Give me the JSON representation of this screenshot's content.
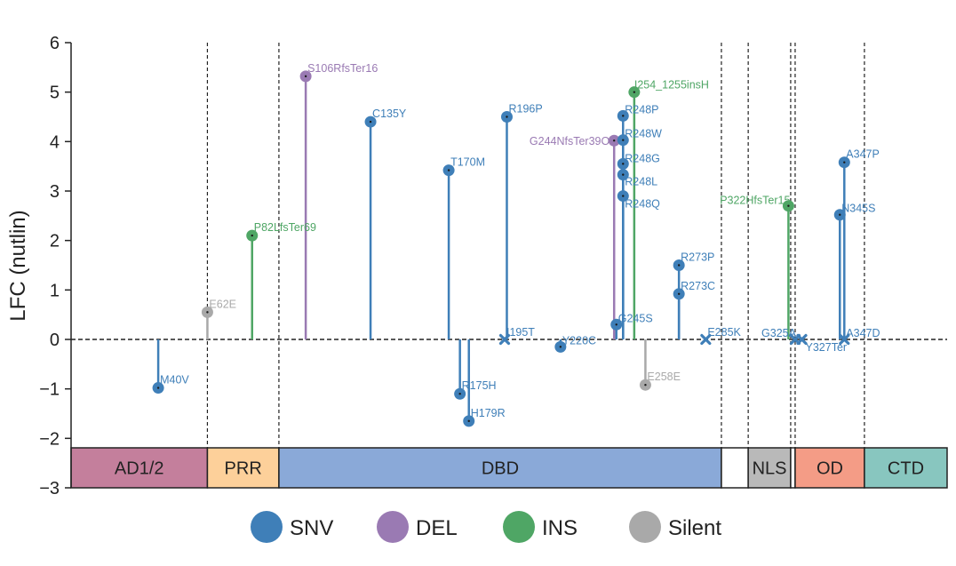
{
  "chart_data": {
    "type": "scatter",
    "subtype": "lollipop",
    "ylabel": "LFC (nutlin)",
    "ylim": [
      -3,
      6
    ],
    "yticks": [
      6,
      5,
      4,
      3,
      2,
      1,
      0,
      -1,
      -2,
      -3
    ],
    "ytick_labels": [
      "6",
      "5",
      "4",
      "3",
      "2",
      "1",
      "0",
      "−1",
      "−2",
      "−3"
    ],
    "xlim": [
      1,
      393
    ],
    "zero_line": true,
    "colors": {
      "SNV": "#3f7fb8",
      "DEL": "#9a7ab3",
      "INS": "#4fa665",
      "Silent": "#a9a9a9"
    },
    "domain_boundaries": [
      62,
      94,
      292,
      304,
      323,
      325,
      356
    ],
    "domains": [
      {
        "label": "AD1/2",
        "start": 1,
        "end": 62,
        "color": "#c47f9c"
      },
      {
        "label": "PRR",
        "start": 62,
        "end": 94,
        "color": "#fdd09a"
      },
      {
        "label": "DBD",
        "start": 94,
        "end": 292,
        "color": "#8aa9d8"
      },
      {
        "label": "",
        "start": 292,
        "end": 304,
        "color": "#ffffff"
      },
      {
        "label": "NLS",
        "start": 304,
        "end": 323,
        "color": "#b9b9b9"
      },
      {
        "label": "",
        "start": 323,
        "end": 325,
        "color": "#ffffff"
      },
      {
        "label": "OD",
        "start": 325,
        "end": 356,
        "color": "#f49c86"
      },
      {
        "label": "CTD",
        "start": 356,
        "end": 393,
        "color": "#88c6bf"
      }
    ],
    "points": [
      {
        "label": "M40V",
        "pos": 40,
        "lfc": -0.98,
        "type": "SNV"
      },
      {
        "label": "E62E",
        "pos": 62,
        "lfc": 0.55,
        "type": "Silent"
      },
      {
        "label": "P82LfsTer69",
        "pos": 82,
        "lfc": 2.1,
        "type": "INS"
      },
      {
        "label": "S106RfsTer16",
        "pos": 106,
        "lfc": 5.32,
        "type": "DEL"
      },
      {
        "label": "C135Y",
        "pos": 135,
        "lfc": 4.4,
        "type": "SNV"
      },
      {
        "label": "T170M",
        "pos": 170,
        "lfc": 3.42,
        "type": "SNV"
      },
      {
        "label": "R175H",
        "pos": 175,
        "lfc": -1.1,
        "type": "SNV"
      },
      {
        "label": "H179R",
        "pos": 179,
        "lfc": -1.65,
        "type": "SNV"
      },
      {
        "label": "I195T",
        "pos": 195,
        "lfc": 0.0,
        "type": "SNV"
      },
      {
        "label": "R196P",
        "pos": 196,
        "lfc": 4.5,
        "type": "SNV"
      },
      {
        "label": "Y220C",
        "pos": 220,
        "lfc": -0.15,
        "type": "SNV"
      },
      {
        "label": "G244NfsTer39O",
        "pos": 244,
        "lfc": 4.02,
        "type": "DEL"
      },
      {
        "label": "G245S",
        "pos": 245,
        "lfc": 0.3,
        "type": "SNV"
      },
      {
        "label": "R248P",
        "pos": 248,
        "lfc": 4.52,
        "type": "SNV"
      },
      {
        "label": "R248W",
        "pos": 248,
        "lfc": 4.03,
        "type": "SNV"
      },
      {
        "label": "R248G",
        "pos": 248,
        "lfc": 3.55,
        "type": "SNV"
      },
      {
        "label": "R248L",
        "pos": 248,
        "lfc": 3.33,
        "type": "SNV"
      },
      {
        "label": "R248Q",
        "pos": 248,
        "lfc": 2.9,
        "type": "SNV"
      },
      {
        "label": "I254_1255insH",
        "pos": 253,
        "lfc": 5.0,
        "type": "INS"
      },
      {
        "label": "E258E",
        "pos": 258,
        "lfc": -0.92,
        "type": "Silent"
      },
      {
        "label": "R273P",
        "pos": 273,
        "lfc": 1.5,
        "type": "SNV"
      },
      {
        "label": "R273C",
        "pos": 273,
        "lfc": 0.92,
        "type": "SNV"
      },
      {
        "label": "E285K",
        "pos": 285,
        "lfc": 0.0,
        "type": "SNV"
      },
      {
        "label": "P322HfsTer15",
        "pos": 322,
        "lfc": 2.7,
        "type": "INS"
      },
      {
        "label": "G325A",
        "pos": 325,
        "lfc": 0.0,
        "type": "SNV"
      },
      {
        "label": "Y327Ter",
        "pos": 328,
        "lfc": 0.0,
        "type": "SNV"
      },
      {
        "label": "N345S",
        "pos": 345,
        "lfc": 2.52,
        "type": "SNV"
      },
      {
        "label": "A347P",
        "pos": 347,
        "lfc": 3.58,
        "type": "SNV"
      },
      {
        "label": "A347D",
        "pos": 347,
        "lfc": 0.0,
        "type": "SNV"
      }
    ],
    "legend": [
      {
        "label": "SNV",
        "type": "SNV"
      },
      {
        "label": "DEL",
        "type": "DEL"
      },
      {
        "label": "INS",
        "type": "INS"
      },
      {
        "label": "Silent",
        "type": "Silent"
      }
    ],
    "legend_position": "bottom-center"
  }
}
